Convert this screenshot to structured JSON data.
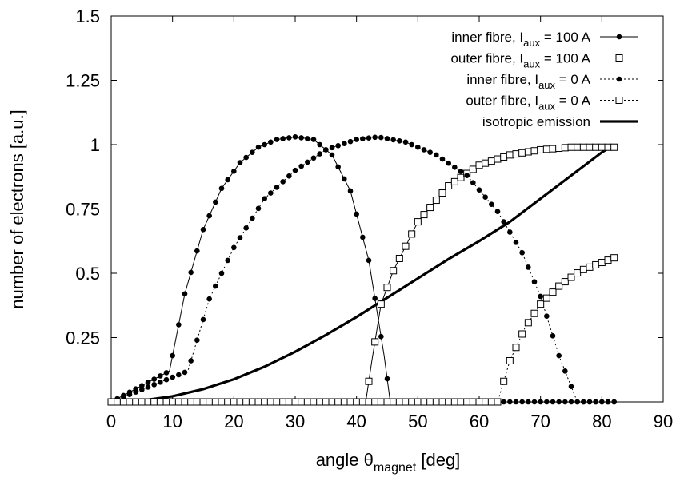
{
  "chart_data": {
    "type": "line",
    "title": "",
    "xlabel": {
      "main": "angle θ",
      "sub": "magnet",
      "unit": "[deg]"
    },
    "ylabel": "number of electrons [a.u.]",
    "xlim": [
      0,
      90
    ],
    "ylim": [
      0,
      1.5
    ],
    "xticks": [
      0,
      10,
      20,
      30,
      40,
      50,
      60,
      70,
      80,
      90
    ],
    "yticks": [
      0.25,
      0.5,
      0.75,
      1,
      1.25,
      1.5
    ],
    "ytick_labels": [
      "0.25",
      "0.5",
      "0.75",
      "1",
      "1.25",
      "1.5"
    ],
    "grid": false,
    "legend_position": "top-right",
    "series": [
      {
        "name": "inner fibre, I_aux = 100 A",
        "legend": {
          "pre": "inner fibre, I",
          "sub": "aux",
          "post": " = 100 A"
        },
        "line": "solid",
        "marker": "filled-circle",
        "color": "#000000",
        "start": 9.5,
        "end": 45.5,
        "peak_x": 30.5,
        "peak_y": 1.03,
        "floor_to": 82,
        "x": [
          0,
          9.5,
          12,
          15,
          18,
          21,
          24,
          27,
          30,
          33,
          36,
          39,
          42,
          44.5,
          45.5,
          82
        ],
        "y": [
          0,
          0.12,
          0.42,
          0.67,
          0.83,
          0.93,
          0.99,
          1.02,
          1.03,
          1.02,
          0.96,
          0.82,
          0.55,
          0.18,
          0,
          0
        ]
      },
      {
        "name": "outer fibre, I_aux = 100 A",
        "legend": {
          "pre": "outer fibre, I",
          "sub": "aux",
          "post": " = 100 A"
        },
        "line": "solid",
        "marker": "open-square",
        "color": "#000000",
        "start": 41.5,
        "floor_from": 0,
        "x": [
          0,
          41.5,
          42.5,
          44,
          46,
          50,
          55,
          60,
          65,
          70,
          75,
          78,
          82
        ],
        "y": [
          0,
          0,
          0.16,
          0.38,
          0.51,
          0.7,
          0.84,
          0.92,
          0.96,
          0.98,
          0.99,
          0.99,
          0.99
        ]
      },
      {
        "name": "inner fibre, I_aux = 0 A",
        "legend": {
          "pre": "inner fibre, I",
          "sub": "aux",
          "post": " = 0 A"
        },
        "line": "dotted",
        "marker": "filled-circle",
        "color": "#000000",
        "start": 12.5,
        "end": 76,
        "peak_x": 43.5,
        "peak_y": 1.03,
        "floor_to": 82,
        "x": [
          0,
          12.5,
          16,
          20,
          25,
          30,
          35,
          40,
          43.5,
          48,
          53,
          58,
          63,
          67,
          70,
          73,
          76,
          82
        ],
        "y": [
          0,
          0.12,
          0.4,
          0.6,
          0.79,
          0.9,
          0.98,
          1.02,
          1.03,
          1.01,
          0.96,
          0.88,
          0.74,
          0.58,
          0.41,
          0.18,
          0,
          0
        ]
      },
      {
        "name": "outer fibre, I_aux = 0 A",
        "legend": {
          "pre": "outer fibre, I",
          "sub": "aux",
          "post": " = 0 A"
        },
        "line": "dotted",
        "marker": "open-square",
        "color": "#000000",
        "start": 63,
        "floor_from": 0,
        "x": [
          0,
          63,
          65,
          67.5,
          70,
          73,
          76.5,
          82
        ],
        "y": [
          0,
          0,
          0.16,
          0.29,
          0.38,
          0.45,
          0.51,
          0.56
        ]
      },
      {
        "name": "isotropic emission",
        "legend": {
          "pre": "isotropic emission",
          "sub": "",
          "post": ""
        },
        "line": "thick-solid",
        "marker": "none",
        "color": "#000000",
        "x": [
          0,
          5,
          10,
          15,
          20,
          25,
          30,
          35,
          40,
          45,
          50,
          55,
          60,
          65,
          70,
          75,
          80,
          82
        ],
        "y": [
          0,
          0.005,
          0.022,
          0.05,
          0.088,
          0.137,
          0.195,
          0.26,
          0.33,
          0.405,
          0.48,
          0.555,
          0.625,
          0.7,
          0.79,
          0.88,
          0.97,
          1.0
        ]
      }
    ]
  }
}
